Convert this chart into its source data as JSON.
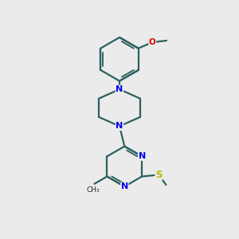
{
  "bg_color": "#ebebeb",
  "bond_color": "#2d6060",
  "N_color": "#0000ee",
  "O_color": "#dd0000",
  "S_color": "#bbbb00",
  "C_color": "#222222",
  "line_width": 1.6,
  "fig_width": 3.0,
  "fig_height": 3.0,
  "dpi": 100,
  "xlim": [
    -0.5,
    4.5
  ],
  "ylim": [
    -1.0,
    6.0
  ]
}
